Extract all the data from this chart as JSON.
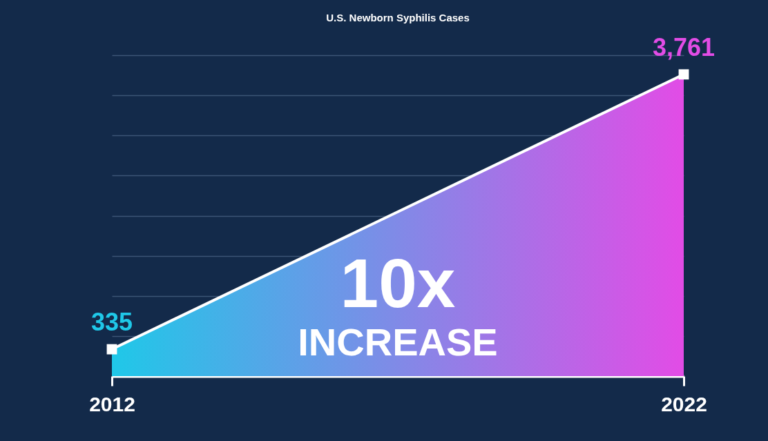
{
  "chart_data": {
    "type": "area",
    "title": "U.S. Newborn Syphilis Cases",
    "x": [
      2012,
      2022
    ],
    "xlim": [
      2012,
      2022
    ],
    "xticks": [
      2012,
      2022
    ],
    "series": [
      {
        "color": "#ffffff",
        "colors": [
          "#1fc8e8",
          "#e24ce6"
        ],
        "values": [
          335,
          3761
        ],
        "value_labels": [
          "335",
          "3,761"
        ]
      }
    ],
    "ylim": [
      0,
      4000
    ],
    "yticks": [
      {
        "value": 0,
        "label": null
      },
      {
        "value": 500,
        "label": null
      },
      {
        "value": 1000,
        "label": null
      },
      {
        "value": 1500,
        "label": null
      },
      {
        "value": 2000,
        "label": null
      },
      {
        "value": 2500,
        "label": null
      },
      {
        "value": 3000,
        "label": null
      },
      {
        "value": 3500,
        "label": null
      },
      {
        "value": 4000,
        "label": null
      }
    ],
    "grid": "y",
    "tick_labels": "x",
    "marker": "square",
    "annotations": [
      "10x",
      "INCREASE"
    ]
  }
}
